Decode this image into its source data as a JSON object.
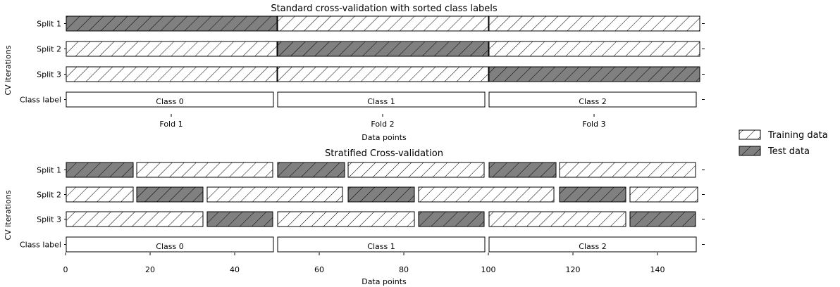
{
  "chart_data": [
    {
      "type": "bar",
      "title": "Standard cross-validation with sorted class labels",
      "xlabel": "Data points",
      "ylabel": "CV iterations",
      "xlim": [
        0,
        150
      ],
      "rows": [
        "Split 1",
        "Split 2",
        "Split 3",
        "Class label"
      ],
      "x_tick_labels": [
        {
          "x": 25,
          "label": "Fold 1"
        },
        {
          "x": 75,
          "label": "Fold 2"
        },
        {
          "x": 125,
          "label": "Fold 3"
        }
      ],
      "splits": [
        {
          "row": "Split 1",
          "segments": [
            [
              0,
              50,
              "test"
            ],
            [
              50,
              100,
              "train"
            ],
            [
              100,
              150,
              "train"
            ]
          ]
        },
        {
          "row": "Split 2",
          "segments": [
            [
              0,
              50,
              "train"
            ],
            [
              50,
              100,
              "test"
            ],
            [
              100,
              150,
              "train"
            ]
          ]
        },
        {
          "row": "Split 3",
          "segments": [
            [
              0,
              50,
              "train"
            ],
            [
              50,
              100,
              "train"
            ],
            [
              100,
              150,
              "test"
            ]
          ]
        }
      ],
      "class_labels": [
        {
          "start": 0,
          "end": 50,
          "label": "Class 0"
        },
        {
          "start": 50,
          "end": 100,
          "label": "Class 1"
        },
        {
          "start": 100,
          "end": 150,
          "label": "Class 2"
        }
      ]
    },
    {
      "type": "bar",
      "title": "Stratified Cross-validation",
      "xlabel": "Data points",
      "ylabel": "CV iterations",
      "xlim": [
        0,
        150
      ],
      "rows": [
        "Split 1",
        "Split 2",
        "Split 3",
        "Class label"
      ],
      "x_ticks": [
        0,
        20,
        40,
        60,
        80,
        100,
        120,
        140
      ],
      "splits": [
        {
          "row": "Split 1",
          "segments": [
            [
              0,
              16,
              "test"
            ],
            [
              16.67,
              49,
              "train"
            ],
            [
              50,
              66,
              "test"
            ],
            [
              66.67,
              99,
              "train"
            ],
            [
              100,
              116,
              "test"
            ],
            [
              116.67,
              149,
              "train"
            ]
          ]
        },
        {
          "row": "Split 2",
          "segments": [
            [
              0,
              16,
              "train"
            ],
            [
              16.67,
              32.5,
              "test"
            ],
            [
              33.33,
              65.5,
              "train"
            ],
            [
              66.67,
              82.5,
              "test"
            ],
            [
              83.33,
              115.5,
              "train"
            ],
            [
              116.67,
              132.5,
              "test"
            ],
            [
              133.33,
              149.5,
              "train"
            ]
          ]
        },
        {
          "row": "Split 3",
          "segments": [
            [
              0,
              32.5,
              "train"
            ],
            [
              33.33,
              49,
              "test"
            ],
            [
              50,
              82.5,
              "train"
            ],
            [
              83.33,
              99,
              "test"
            ],
            [
              100,
              132.5,
              "train"
            ],
            [
              133.33,
              149,
              "test"
            ]
          ]
        }
      ],
      "class_labels": [
        {
          "start": 0,
          "end": 50,
          "label": "Class 0"
        },
        {
          "start": 50,
          "end": 100,
          "label": "Class 1"
        },
        {
          "start": 100,
          "end": 150,
          "label": "Class 2"
        }
      ]
    }
  ],
  "legend": {
    "position": "right",
    "items": [
      {
        "label": "Training data",
        "kind": "train"
      },
      {
        "label": "Test data",
        "kind": "test"
      }
    ]
  },
  "colors": {
    "test_fill": "#808080",
    "train_fill": "#ffffff",
    "edge": "#000000"
  }
}
